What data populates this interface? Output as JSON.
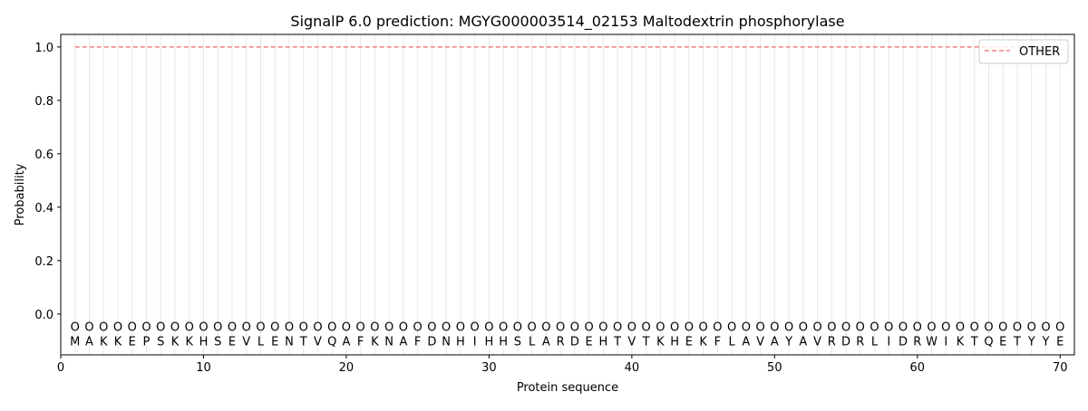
{
  "chart_data": {
    "type": "line",
    "title": "SignalP 6.0 prediction: MGYG000003514_02153 Maltodextrin phosphorylase",
    "xlabel": "Protein sequence",
    "ylabel": "Probability",
    "xlim": [
      0,
      71
    ],
    "ylim": [
      -0.153,
      1.047
    ],
    "xticks": [
      0,
      10,
      20,
      30,
      40,
      50,
      60,
      70
    ],
    "yticks": [
      0.0,
      0.2,
      0.4,
      0.6,
      0.8,
      1.0
    ],
    "ytick_labels": [
      "0.0",
      "0.2",
      "0.4",
      "0.6",
      "0.8",
      "1.0"
    ],
    "grid": "vertical lines at each residue",
    "legend_placement": "top-right",
    "sequence": [
      "M",
      "A",
      "K",
      "K",
      "E",
      "P",
      "S",
      "K",
      "K",
      "H",
      "S",
      "E",
      "V",
      "L",
      "E",
      "N",
      "T",
      "V",
      "Q",
      "A",
      "F",
      "K",
      "N",
      "A",
      "F",
      "D",
      "N",
      "H",
      "I",
      "H",
      "H",
      "S",
      "L",
      "A",
      "R",
      "D",
      "E",
      "H",
      "T",
      "V",
      "T",
      "K",
      "H",
      "E",
      "K",
      "F",
      "L",
      "A",
      "V",
      "A",
      "Y",
      "A",
      "V",
      "R",
      "D",
      "R",
      "L",
      "I",
      "D",
      "R",
      "W",
      "I",
      "K",
      "T",
      "Q",
      "E",
      "T",
      "Y",
      "Y",
      "E"
    ],
    "predicted_labels": "O",
    "series": [
      {
        "name": "OTHER",
        "color": "#f08080",
        "style": "dashed",
        "x_start": 1,
        "x_end": 70,
        "value": 1.0
      }
    ]
  }
}
